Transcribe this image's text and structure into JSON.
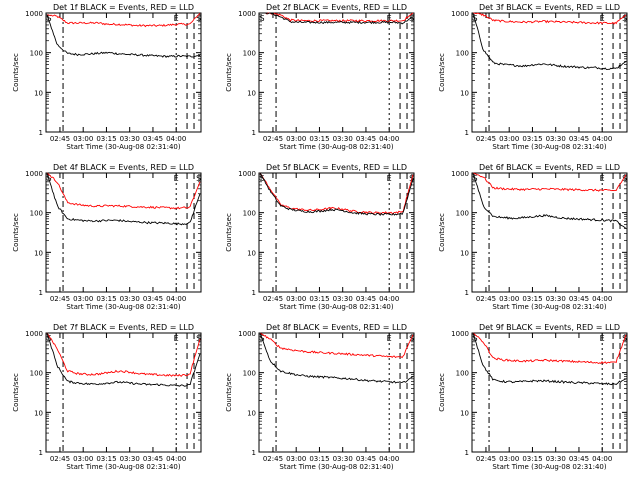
{
  "chart_data": [
    {
      "type": "line",
      "title": "Det 1f BLACK = Events, RED = LLD",
      "xlabel": "Start Time (30-Aug-08 02:31:40)",
      "ylabel": "Counts/sec",
      "xticks": [
        "02:45",
        "03:00",
        "03:15",
        "03:30",
        "03:45",
        "04:00"
      ],
      "yticks": [
        "1",
        "10",
        "100",
        "1000"
      ],
      "ylim": [
        1,
        1000
      ],
      "y_scale": "log",
      "markers": [
        "S",
        "E",
        "S"
      ],
      "series": [
        {
          "color": "#ff0000",
          "values": [
            900,
            820,
            560,
            560,
            560,
            560,
            520,
            520,
            500,
            480,
            480,
            480,
            500,
            520,
            520,
            980
          ]
        },
        {
          "color": "#000000",
          "values": [
            900,
            160,
            95,
            90,
            92,
            96,
            100,
            94,
            90,
            88,
            84,
            82,
            80,
            82,
            80,
            85
          ]
        }
      ]
    },
    {
      "type": "line",
      "title": "Det 2f BLACK = Events, RED = LLD",
      "xlabel": "Start Time (30-Aug-08 02:31:40)",
      "ylabel": "Counts/sec",
      "xticks": [
        "02:45",
        "03:00",
        "03:15",
        "03:30",
        "03:45",
        "04:00"
      ],
      "yticks": [
        "1",
        "10",
        "100",
        "1000"
      ],
      "ylim": [
        1,
        1000
      ],
      "y_scale": "log",
      "markers": [
        "S",
        "E",
        "S"
      ],
      "series": [
        {
          "color": "#ff0000",
          "values": [
            1000,
            1000,
            900,
            660,
            640,
            640,
            640,
            640,
            640,
            640,
            640,
            640,
            640,
            640,
            640,
            1000
          ]
        },
        {
          "color": "#000000",
          "values": [
            1000,
            1000,
            800,
            600,
            580,
            580,
            580,
            580,
            580,
            580,
            580,
            580,
            580,
            580,
            560,
            800
          ]
        }
      ]
    },
    {
      "type": "line",
      "title": "Det 3f BLACK = Events, RED = LLD",
      "xlabel": "Start Time (30-Aug-08 02:31:40)",
      "ylabel": "Counts/sec",
      "xticks": [
        "02:45",
        "03:00",
        "03:15",
        "03:30",
        "03:45",
        "04:00"
      ],
      "yticks": [
        "1",
        "10",
        "100",
        "1000"
      ],
      "ylim": [
        1,
        1000
      ],
      "y_scale": "log",
      "markers": [
        "S",
        "E",
        "S"
      ],
      "series": [
        {
          "color": "#ff0000",
          "values": [
            1000,
            900,
            650,
            620,
            600,
            590,
            600,
            610,
            600,
            590,
            580,
            570,
            560,
            560,
            550,
            900
          ]
        },
        {
          "color": "#000000",
          "values": [
            1000,
            120,
            55,
            50,
            48,
            46,
            50,
            52,
            48,
            45,
            44,
            42,
            42,
            40,
            40,
            60
          ]
        }
      ]
    },
    {
      "type": "line",
      "title": "Det 4f BLACK = Events, RED = LLD",
      "xlabel": "Start Time (30-Aug-08 02:31:40)",
      "ylabel": "Counts/sec",
      "xticks": [
        "02:45",
        "03:00",
        "03:15",
        "03:30",
        "03:45",
        "04:00"
      ],
      "yticks": [
        "1",
        "10",
        "100",
        "1000"
      ],
      "ylim": [
        1,
        1000
      ],
      "y_scale": "log",
      "markers": [
        "S",
        "E",
        "S"
      ],
      "series": [
        {
          "color": "#ff0000",
          "values": [
            1000,
            600,
            180,
            160,
            150,
            145,
            150,
            148,
            145,
            140,
            138,
            135,
            132,
            130,
            135,
            600
          ]
        },
        {
          "color": "#000000",
          "values": [
            1000,
            150,
            70,
            65,
            62,
            62,
            64,
            64,
            60,
            58,
            56,
            55,
            54,
            52,
            54,
            300
          ]
        }
      ]
    },
    {
      "type": "line",
      "title": "Det 5f BLACK = Events, RED = LLD",
      "xlabel": "Start Time (30-Aug-08 02:31:40)",
      "ylabel": "Counts/sec",
      "xticks": [
        "02:45",
        "03:00",
        "03:15",
        "03:30",
        "03:45",
        "04:00"
      ],
      "yticks": [
        "1",
        "10",
        "100",
        "1000"
      ],
      "ylim": [
        1,
        1000
      ],
      "y_scale": "log",
      "markers": [
        "S",
        "E",
        "S"
      ],
      "series": [
        {
          "color": "#ff0000",
          "values": [
            1000,
            400,
            160,
            130,
            120,
            115,
            120,
            130,
            125,
            110,
            105,
            100,
            100,
            100,
            105,
            900
          ]
        },
        {
          "color": "#000000",
          "values": [
            1000,
            350,
            150,
            120,
            110,
            105,
            110,
            120,
            115,
            100,
            95,
            92,
            90,
            90,
            95,
            700
          ]
        }
      ]
    },
    {
      "type": "line",
      "title": "Det 6f BLACK = Events, RED = LLD",
      "xlabel": "Start Time (30-Aug-08 02:31:40)",
      "ylabel": "Counts/sec",
      "xticks": [
        "02:45",
        "03:00",
        "03:15",
        "03:30",
        "03:45",
        "04:00"
      ],
      "yticks": [
        "1",
        "10",
        "100",
        "1000"
      ],
      "ylim": [
        1,
        1000
      ],
      "y_scale": "log",
      "markers": [
        "S",
        "E",
        "S"
      ],
      "series": [
        {
          "color": "#ff0000",
          "values": [
            1000,
            800,
            420,
            400,
            390,
            385,
            390,
            395,
            390,
            385,
            380,
            375,
            370,
            365,
            360,
            900
          ]
        },
        {
          "color": "#000000",
          "values": [
            1000,
            150,
            80,
            75,
            72,
            75,
            80,
            85,
            78,
            72,
            70,
            68,
            66,
            64,
            62,
            40
          ]
        }
      ]
    },
    {
      "type": "line",
      "title": "Det 7f BLACK = Events, RED = LLD",
      "xlabel": "Start Time (30-Aug-08 02:31:40)",
      "ylabel": "Counts/sec",
      "xticks": [
        "02:45",
        "03:00",
        "03:15",
        "03:30",
        "03:45",
        "04:00"
      ],
      "yticks": [
        "1",
        "10",
        "100",
        "1000"
      ],
      "ylim": [
        1,
        1000
      ],
      "y_scale": "log",
      "markers": [
        "S",
        "E",
        "S"
      ],
      "series": [
        {
          "color": "#ff0000",
          "values": [
            1000,
            400,
            110,
            95,
            90,
            92,
            100,
            110,
            105,
            95,
            90,
            88,
            85,
            85,
            90,
            700
          ]
        },
        {
          "color": "#000000",
          "values": [
            1000,
            150,
            60,
            55,
            52,
            52,
            55,
            58,
            55,
            52,
            50,
            50,
            48,
            47,
            48,
            300
          ]
        }
      ]
    },
    {
      "type": "line",
      "title": "Det 8f BLACK = Events, RED = LLD",
      "xlabel": "Start Time (30-Aug-08 02:31:40)",
      "ylabel": "Counts/sec",
      "xticks": [
        "02:45",
        "03:00",
        "03:15",
        "03:30",
        "03:45",
        "04:00"
      ],
      "yticks": [
        "1",
        "10",
        "100",
        "1000"
      ],
      "ylim": [
        1,
        1000
      ],
      "y_scale": "log",
      "markers": [
        "S",
        "E",
        "S"
      ],
      "series": [
        {
          "color": "#ff0000",
          "values": [
            1000,
            700,
            420,
            380,
            350,
            330,
            320,
            310,
            300,
            290,
            280,
            270,
            260,
            250,
            250,
            900
          ]
        },
        {
          "color": "#000000",
          "values": [
            1000,
            200,
            110,
            95,
            85,
            80,
            78,
            75,
            72,
            70,
            65,
            62,
            60,
            58,
            55,
            80
          ]
        }
      ]
    },
    {
      "type": "line",
      "title": "Det 9f BLACK = Events, RED = LLD",
      "xlabel": "Start Time (30-Aug-08 02:31:40)",
      "ylabel": "Counts/sec",
      "xticks": [
        "02:45",
        "03:00",
        "03:15",
        "03:30",
        "03:45",
        "04:00"
      ],
      "yticks": [
        "1",
        "10",
        "100",
        "1000"
      ],
      "ylim": [
        1,
        1000
      ],
      "y_scale": "log",
      "markers": [
        "S",
        "E",
        "S"
      ],
      "series": [
        {
          "color": "#ff0000",
          "values": [
            1000,
            600,
            230,
            210,
            200,
            195,
            200,
            205,
            200,
            195,
            190,
            185,
            180,
            180,
            180,
            900
          ]
        },
        {
          "color": "#000000",
          "values": [
            1000,
            150,
            65,
            60,
            58,
            60,
            62,
            62,
            60,
            58,
            56,
            55,
            54,
            52,
            52,
            70
          ]
        }
      ]
    }
  ]
}
